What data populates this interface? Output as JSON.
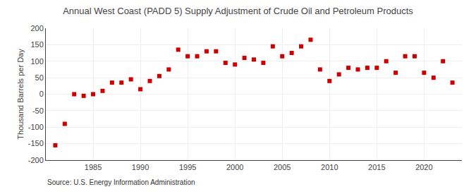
{
  "chart_data": {
    "type": "scatter",
    "title": "Annual West Coast (PADD 5) Supply Adjustment of Crude Oil and Petroleum Products",
    "ylabel": "Thousand Barrels per Day",
    "annotations": [
      "Source: U.S. Energy Information Administration"
    ],
    "x": [
      1981,
      1982,
      1983,
      1984,
      1985,
      1986,
      1987,
      1988,
      1989,
      1990,
      1991,
      1992,
      1993,
      1994,
      1995,
      1996,
      1997,
      1998,
      1999,
      2000,
      2001,
      2002,
      2003,
      2004,
      2005,
      2006,
      2007,
      2008,
      2009,
      2010,
      2011,
      2012,
      2013,
      2014,
      2015,
      2016,
      2017,
      2018,
      2019,
      2020,
      2021,
      2022,
      2023
    ],
    "values": [
      -155,
      -90,
      0,
      -5,
      0,
      10,
      35,
      35,
      45,
      15,
      40,
      55,
      75,
      135,
      115,
      115,
      130,
      130,
      95,
      90,
      110,
      105,
      95,
      145,
      115,
      125,
      145,
      165,
      75,
      40,
      60,
      80,
      75,
      80,
      80,
      100,
      65,
      115,
      115,
      65,
      50,
      100,
      35
    ],
    "color": "#cc0000",
    "marker": "square",
    "xlim": [
      1980,
      2024
    ],
    "xticks": [
      1985,
      1990,
      1995,
      2000,
      2005,
      2010,
      2015,
      2020
    ],
    "ylim": [
      -200,
      200
    ],
    "yticks": [
      -200,
      -150,
      -100,
      -50,
      0,
      50,
      100,
      150,
      200
    ],
    "grid": true
  }
}
